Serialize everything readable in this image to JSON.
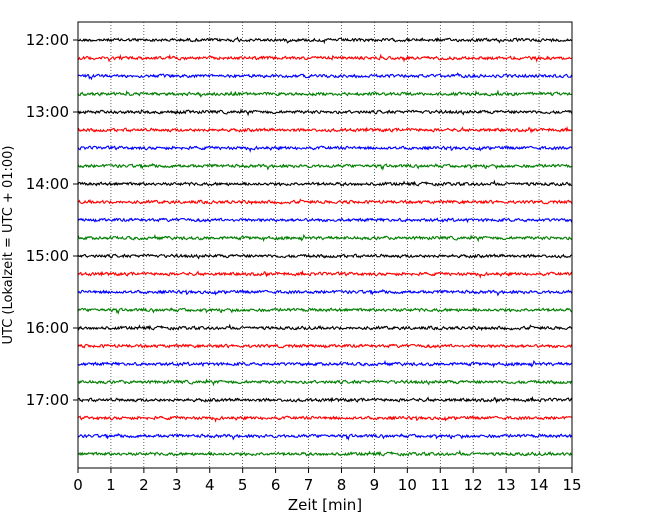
{
  "chart_data": {
    "type": "line",
    "title": "",
    "xlabel": "Zeit  [min]",
    "ylabel": "UTC (Lokalzeit = UTC + 01:00)",
    "xlim": [
      0,
      15
    ],
    "x_ticks": [
      "0",
      "1",
      "2",
      "3",
      "4",
      "5",
      "6",
      "7",
      "8",
      "9",
      "10",
      "11",
      "12",
      "13",
      "14",
      "15"
    ],
    "y_ticks": [
      "12:00",
      "13:00",
      "14:00",
      "15:00",
      "16:00",
      "17:00"
    ],
    "grid": "vertical dotted lines at each minute",
    "trace_start_times": [
      "12:00",
      "12:15",
      "12:30",
      "12:45",
      "13:00",
      "13:15",
      "13:30",
      "13:45",
      "14:00",
      "14:15",
      "14:30",
      "14:45",
      "15:00",
      "15:15",
      "15:30",
      "15:45",
      "16:00",
      "16:15",
      "16:30",
      "16:45",
      "17:00",
      "17:15",
      "17:30",
      "17:45"
    ],
    "trace_colors": [
      "#000000",
      "#ff0000",
      "#0000ff",
      "#007f00"
    ],
    "trace_duration_min": 15
  }
}
